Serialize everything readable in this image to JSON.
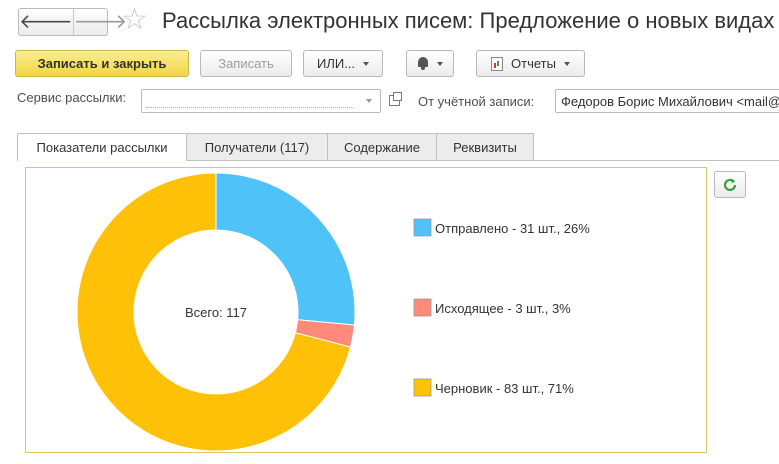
{
  "window": {
    "title": "Рассылка электронных писем: Предложение о новых видах"
  },
  "nav": {
    "back_icon": "arrow-left-icon",
    "forward_icon": "arrow-right-icon",
    "favorite_icon": "star-icon"
  },
  "toolbar": {
    "save_close_label": "Записать и закрыть",
    "save_label": "Записать",
    "ili_label": "ИЛИ...",
    "reminder_icon": "bell-icon",
    "reports_label": "Отчеты"
  },
  "form": {
    "service_label": "Сервис рассылки:",
    "service_value": "",
    "account_label": "От учётной записи:",
    "account_value": "Федоров Борис Михайлович <mail@"
  },
  "tabs": [
    {
      "label": "Показатели рассылки",
      "active": true
    },
    {
      "label": "Получатели (117)",
      "active": false
    },
    {
      "label": "Содержание",
      "active": false
    },
    {
      "label": "Реквизиты",
      "active": false
    }
  ],
  "refresh": {
    "icon": "refresh-icon"
  },
  "chart_data": {
    "type": "pie",
    "style": "donut",
    "center_label": "Всего: 117",
    "total": 117,
    "slices": [
      {
        "name": "Отправлено",
        "value": 31,
        "percent": 26,
        "color": "#4fc3f7",
        "legend": "Отправлено - 31 шт., 26%"
      },
      {
        "name": "Исходящее",
        "value": 3,
        "percent": 3,
        "color": "#ff8a7a",
        "legend": "Исходящее - 3 шт., 3%"
      },
      {
        "name": "Черновик",
        "value": 83,
        "percent": 71,
        "color": "#ffc107",
        "legend": "Черновик - 83 шт., 71%"
      }
    ],
    "legend_placement": "right"
  }
}
